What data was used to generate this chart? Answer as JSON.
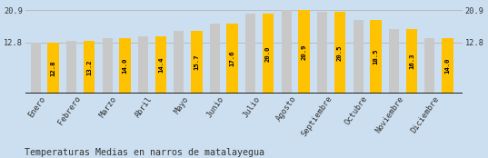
{
  "months": [
    "Enero",
    "Febrero",
    "Marzo",
    "Abril",
    "Mayo",
    "Junio",
    "Julio",
    "Agosto",
    "Septiembre",
    "Octubre",
    "Noviembre",
    "Diciembre"
  ],
  "values": [
    12.8,
    13.2,
    14.0,
    14.4,
    15.7,
    17.6,
    20.0,
    20.9,
    20.5,
    18.5,
    16.3,
    14.0
  ],
  "bar_color_yellow": "#FFC200",
  "bar_color_gray": "#C8C8C8",
  "background_color": "#CCDFF0",
  "title": "Temperaturas Medias en narros de matalayegua",
  "ylim_max": 20.9,
  "yticks": [
    12.8,
    20.9
  ],
  "gridline_color": "#BBBBBB",
  "label_fontsize": 5.2,
  "title_fontsize": 7.2,
  "tick_fontsize": 6.2
}
